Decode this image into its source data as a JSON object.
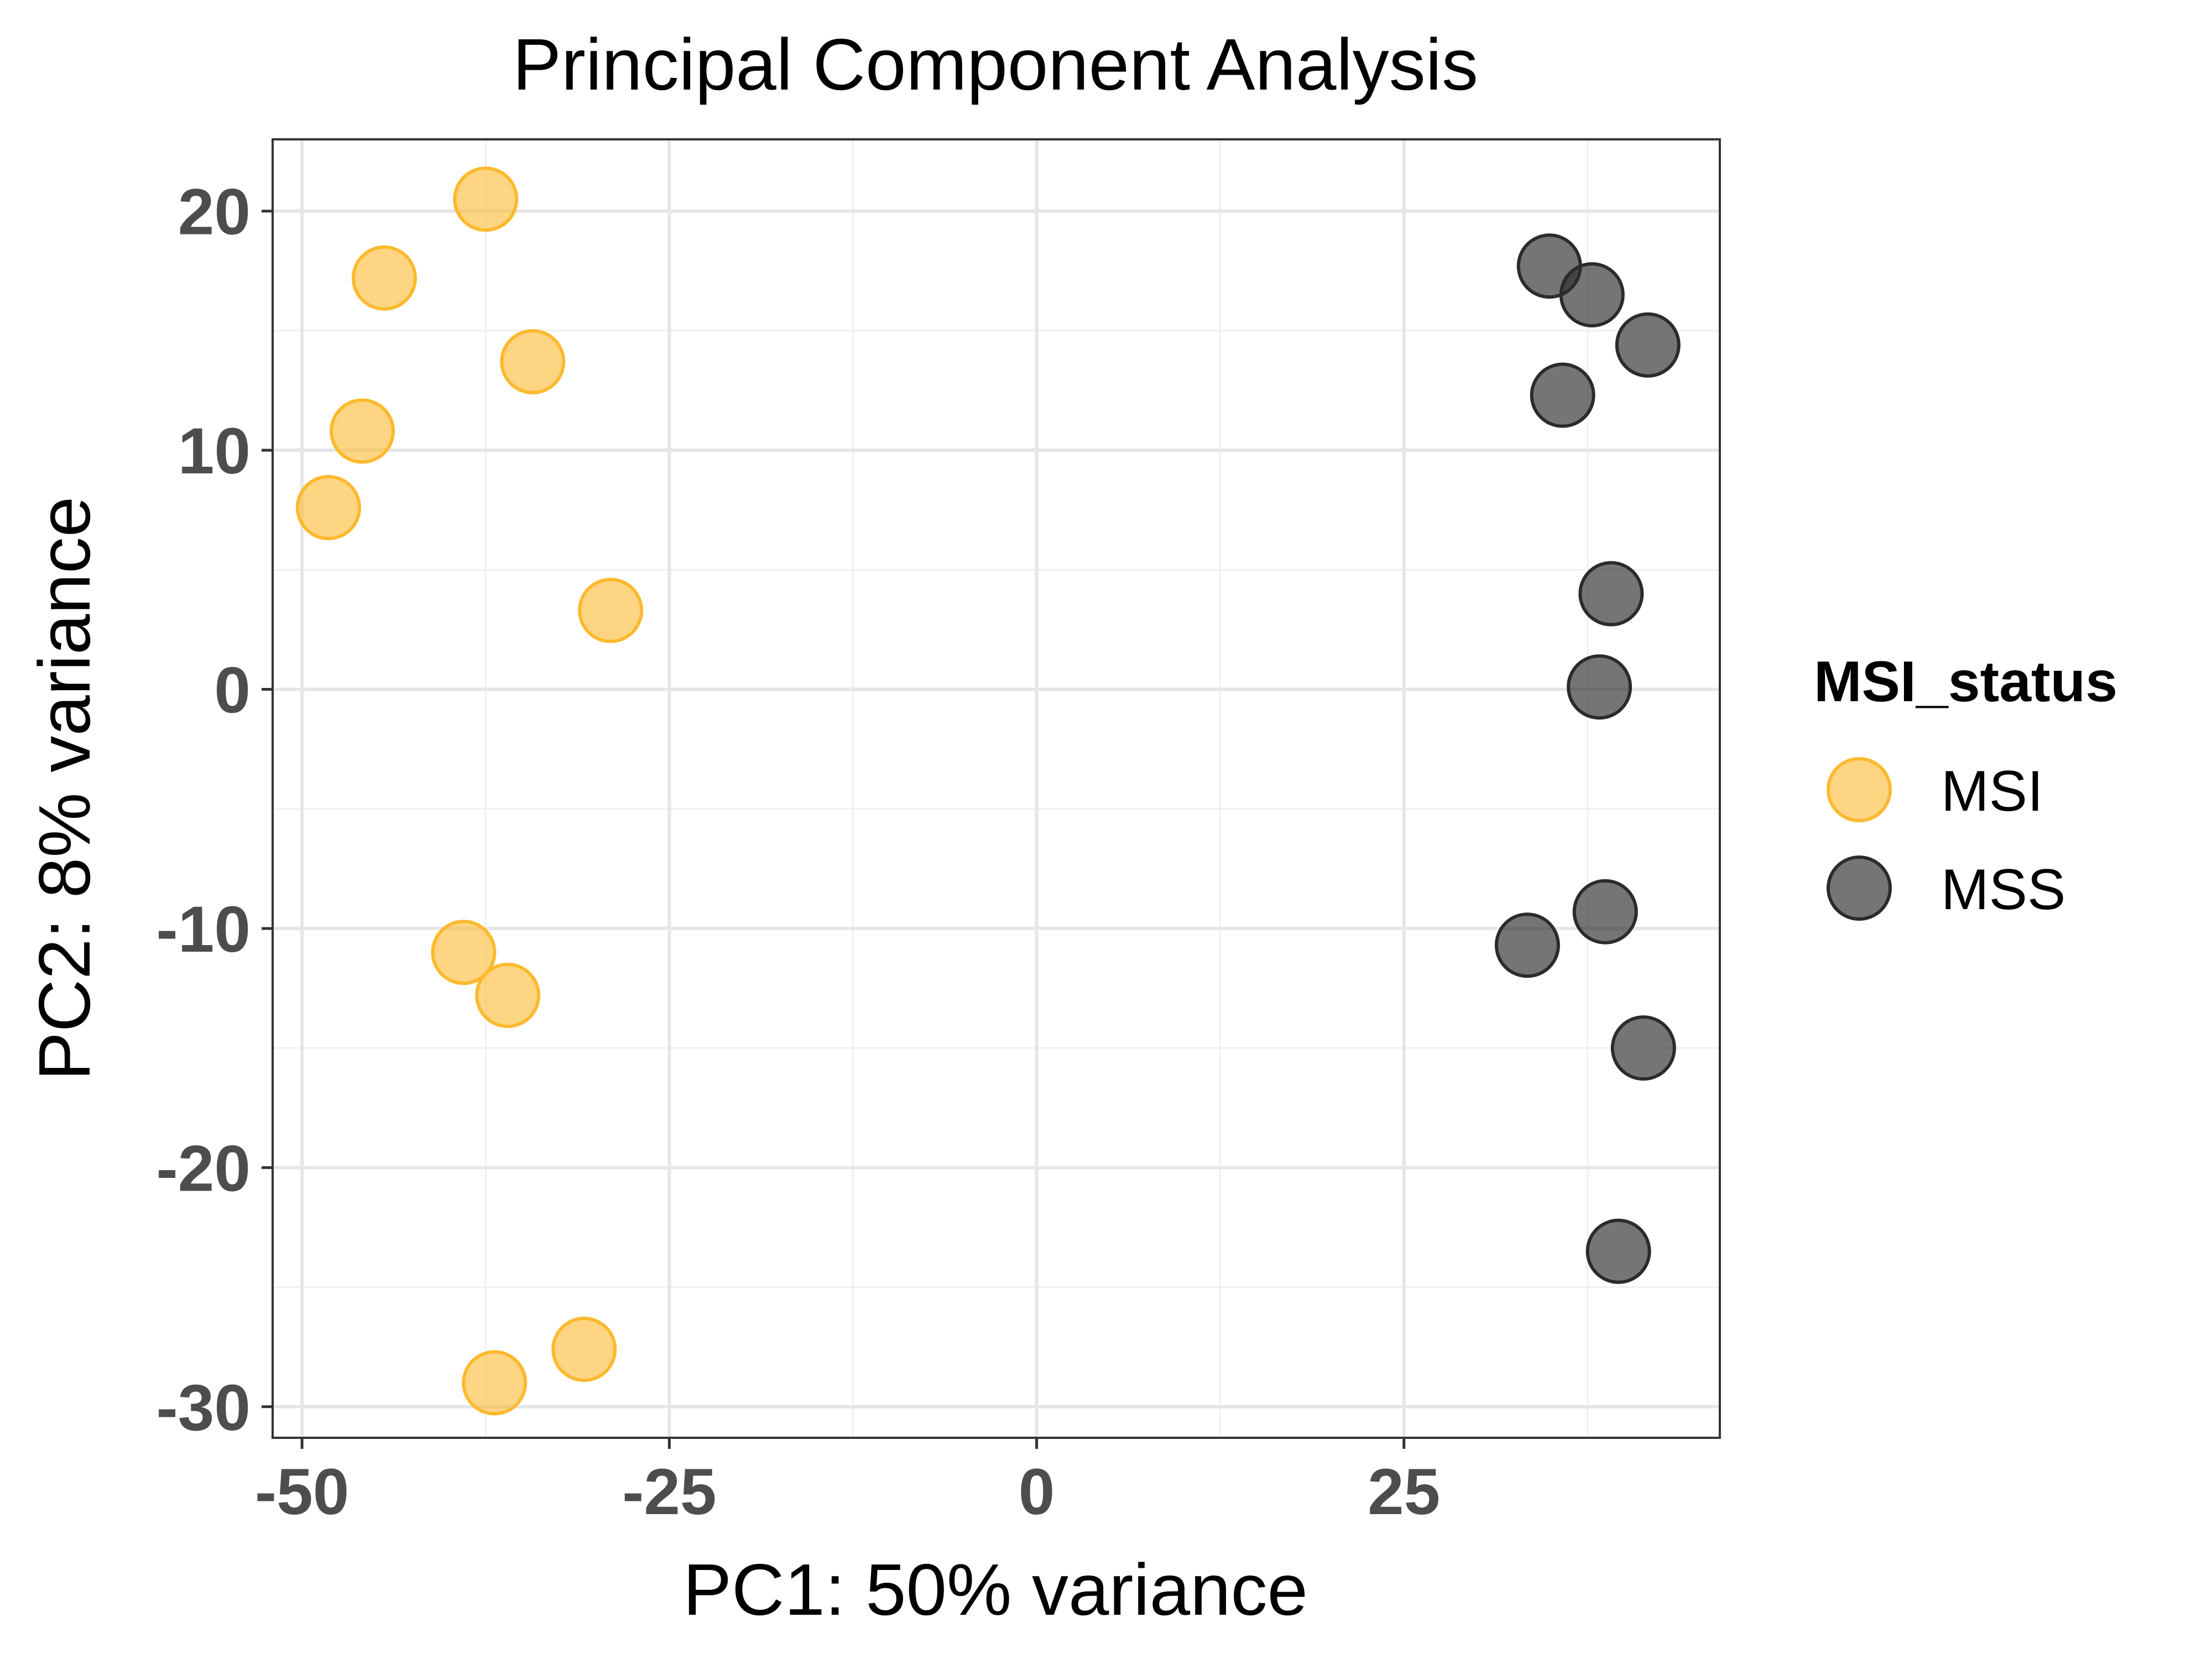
{
  "chart_data": {
    "type": "scatter",
    "title": "Principal Component Analysis",
    "xlabel": "PC1: 50% variance",
    "ylabel": "PC2: 8% variance",
    "xlim": [
      -52,
      46.5
    ],
    "ylim": [
      -31.3,
      23
    ],
    "x_ticks": [
      -50,
      -25,
      0,
      25
    ],
    "x_tick_labels": [
      "-50",
      "-25",
      "0",
      "25"
    ],
    "y_ticks": [
      20,
      10,
      0,
      -10,
      -20,
      -30
    ],
    "y_tick_labels": [
      "20",
      "10",
      "0",
      "-10",
      "-20",
      "-30"
    ],
    "grid": true,
    "legend": {
      "title": "MSI_status",
      "position": "right",
      "entries": [
        "MSI",
        "MSS"
      ]
    },
    "series": [
      {
        "name": "MSI",
        "color": "#FDB92E",
        "points": [
          {
            "x": -37.5,
            "y": 20.5
          },
          {
            "x": -44.4,
            "y": 17.2
          },
          {
            "x": -34.3,
            "y": 13.7
          },
          {
            "x": -45.9,
            "y": 10.8
          },
          {
            "x": -48.2,
            "y": 7.6
          },
          {
            "x": -29.0,
            "y": 3.3
          },
          {
            "x": -39.0,
            "y": -11.0
          },
          {
            "x": -36.0,
            "y": -12.8
          },
          {
            "x": -30.8,
            "y": -27.6
          },
          {
            "x": -36.9,
            "y": -29.0
          }
        ]
      },
      {
        "name": "MSS",
        "color": "#2b2b2b",
        "points": [
          {
            "x": 34.9,
            "y": 17.7
          },
          {
            "x": 37.8,
            "y": 16.5
          },
          {
            "x": 41.6,
            "y": 14.4
          },
          {
            "x": 35.8,
            "y": 12.3
          },
          {
            "x": 39.1,
            "y": 4.0
          },
          {
            "x": 38.3,
            "y": 0.1
          },
          {
            "x": 38.7,
            "y": -9.3
          },
          {
            "x": 33.4,
            "y": -10.7
          },
          {
            "x": 41.3,
            "y": -15.0
          },
          {
            "x": 39.6,
            "y": -23.5
          }
        ]
      }
    ]
  }
}
